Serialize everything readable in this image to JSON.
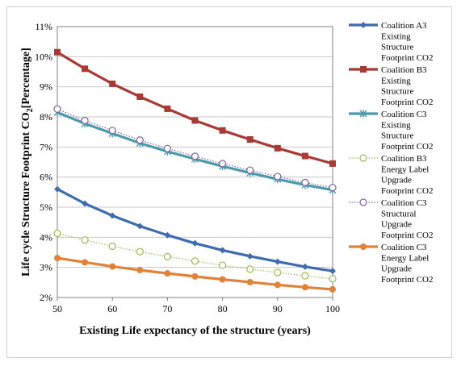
{
  "chart_data": {
    "type": "line",
    "title": "",
    "xlabel": "Existing Life expectancy of the structure (years)",
    "ylabel_main": "Life cycle Structure Footprint CO",
    "ylabel_sub": "2",
    "ylabel_tail": "[Percentage]",
    "xlim": [
      50,
      100
    ],
    "ylim": [
      2,
      11
    ],
    "x_ticks": [
      50,
      60,
      70,
      80,
      90,
      100
    ],
    "y_ticks": [
      "2%",
      "3%",
      "4%",
      "5%",
      "6%",
      "7%",
      "8%",
      "9%",
      "10%",
      "11%"
    ],
    "grid": "horizontal",
    "legend_position": "right",
    "x": [
      50,
      55,
      60,
      65,
      70,
      75,
      80,
      85,
      90,
      95,
      100
    ],
    "series": [
      {
        "name": "Coalition A3 Existing Structure Footprint CO2",
        "legend_lines": [
          "Coalition A3",
          "Existing",
          "Structure",
          "Footprint CO2"
        ],
        "color": "#3f6cae",
        "marker": "diamond",
        "line": "solid",
        "values": [
          5.6,
          5.12,
          4.72,
          4.37,
          4.07,
          3.8,
          3.57,
          3.37,
          3.19,
          3.02,
          2.88
        ]
      },
      {
        "name": "Coalition B3 Existing Structure Footprint CO2",
        "legend_lines": [
          "Coalition B3",
          "Existing",
          "Structure",
          "Footprint CO2"
        ],
        "color": "#a83a35",
        "marker": "square",
        "line": "solid",
        "values": [
          10.15,
          9.6,
          9.1,
          8.67,
          8.27,
          7.88,
          7.55,
          7.25,
          6.96,
          6.7,
          6.45
        ]
      },
      {
        "name": "Coalition C3 Existing Structure Footprint CO2",
        "legend_lines": [
          "Coalition C3",
          "Existing",
          "Structure",
          "Footprint CO2"
        ],
        "color": "#4a9aac",
        "marker": "asterisk",
        "line": "solid",
        "values": [
          8.15,
          7.78,
          7.45,
          7.13,
          6.85,
          6.6,
          6.36,
          6.14,
          5.93,
          5.74,
          5.57
        ]
      },
      {
        "name": "Coalition B3 Energy Label Upgrade Footprint CO2",
        "legend_lines": [
          "Coalition B3",
          "Energy Label",
          "Upgrade",
          "Footprint CO2"
        ],
        "color": "#9bbb59",
        "marker": "circle-open",
        "line": "dotted",
        "values": [
          4.13,
          3.91,
          3.7,
          3.52,
          3.36,
          3.21,
          3.07,
          2.94,
          2.83,
          2.72,
          2.62
        ]
      },
      {
        "name": "Coalition C3 Structural Upgrade Footprint CO2",
        "legend_lines": [
          "Coalition C3",
          "Structural",
          "Upgrade",
          "Footprint CO2"
        ],
        "color": "#8064a2",
        "marker": "circle-open",
        "line": "dotted",
        "values": [
          8.26,
          7.88,
          7.55,
          7.23,
          6.95,
          6.69,
          6.45,
          6.23,
          6.02,
          5.82,
          5.65
        ]
      },
      {
        "name": "Coalition C3 Energy Label Upgrade Footprint CO2",
        "legend_lines": [
          "Coalition C3",
          "Energy Label",
          "Upgrade",
          "Footprint CO2"
        ],
        "color": "#e0823a",
        "marker": "circle",
        "line": "solid",
        "values": [
          3.31,
          3.17,
          3.03,
          2.91,
          2.8,
          2.7,
          2.6,
          2.51,
          2.42,
          2.34,
          2.27
        ]
      }
    ]
  }
}
